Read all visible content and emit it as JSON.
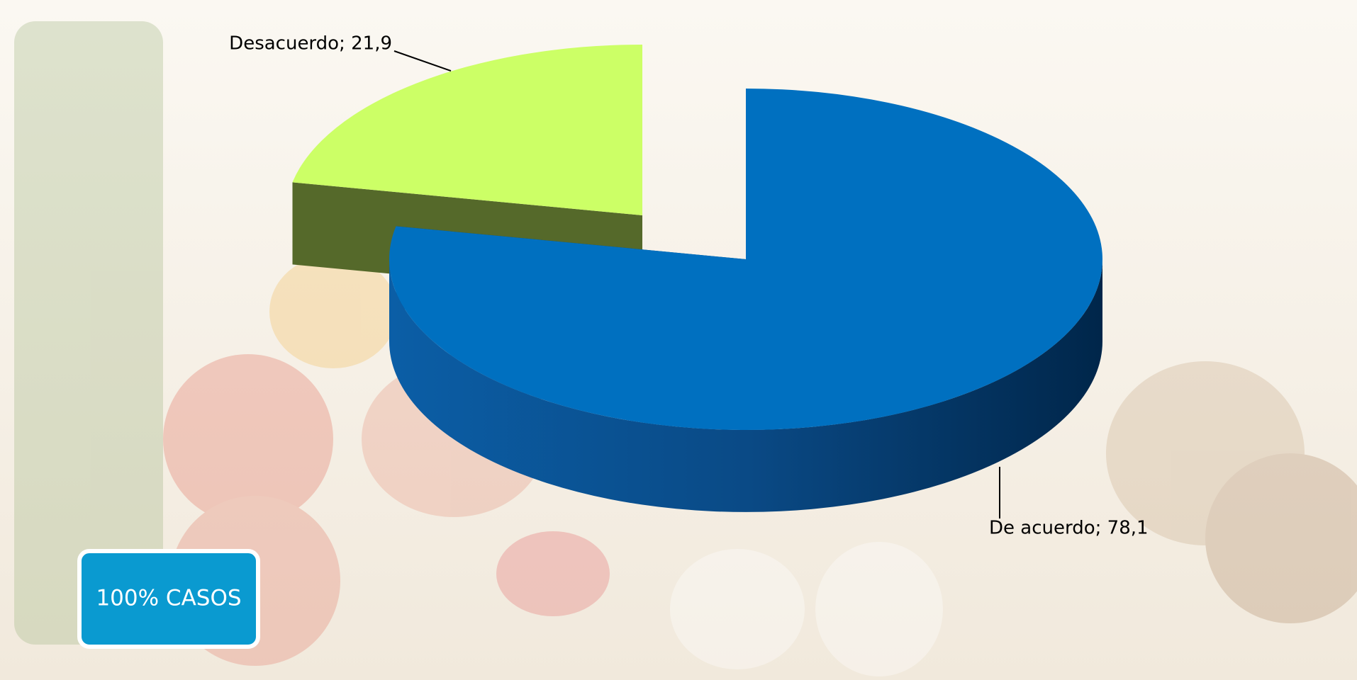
{
  "chart_data": {
    "type": "pie3d",
    "values": [
      78.1,
      21.9
    ],
    "value_labels": [
      "De acuerdo; 78,1",
      "Desacuerdo; 21,9"
    ],
    "colors": [
      "#0070c0",
      "#ccff66"
    ],
    "annotation": "100% CASOS"
  }
}
